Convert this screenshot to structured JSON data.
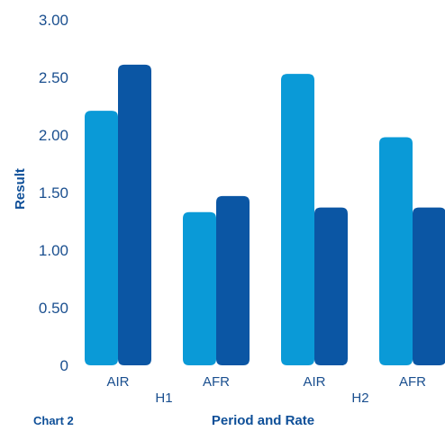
{
  "chart_data": {
    "type": "bar",
    "caption": "Chart 2",
    "xlabel": "Period and Rate",
    "ylabel": "Result",
    "ylim": [
      0,
      3.0
    ],
    "yticks": [
      "0",
      "0.50",
      "1.00",
      "1.50",
      "2.00",
      "2.50",
      "3.00"
    ],
    "groups": [
      {
        "label": "H1",
        "categories": [
          "AIR",
          "AFR"
        ]
      },
      {
        "label": "H2",
        "categories": [
          "AIR",
          "AFR"
        ]
      }
    ],
    "categories": [
      "AIR",
      "AFR",
      "AIR",
      "AFR"
    ],
    "series": [
      {
        "color": "#0a9ad7",
        "values": [
          2.21,
          1.33,
          2.53,
          1.98
        ]
      },
      {
        "color": "#0b56a4",
        "values": [
          2.61,
          1.47,
          1.37,
          1.37
        ]
      }
    ],
    "grid": false,
    "legend": "none"
  }
}
